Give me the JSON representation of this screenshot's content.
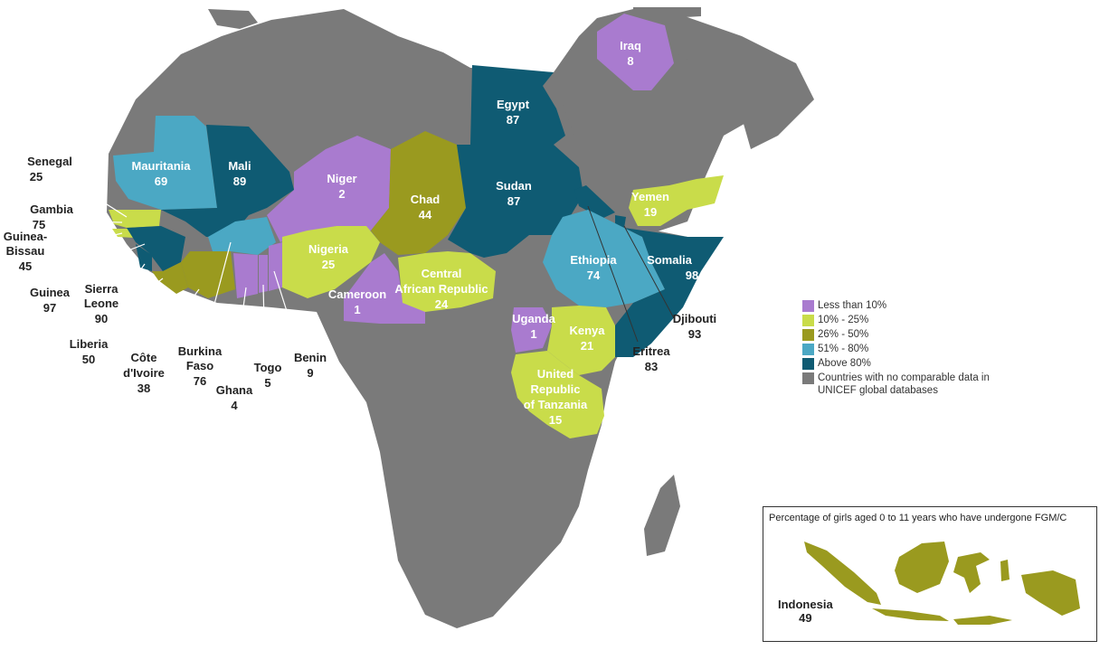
{
  "colors": {
    "less_than_10": "#a97bcf",
    "10_25": "#c9dc4a",
    "26_50": "#9a9a1f",
    "51_80": "#4ba8c4",
    "above_80": "#0f5b73",
    "no_data": "#7a7a7a"
  },
  "legend": [
    {
      "label": "Less than 10%",
      "color": "#a97bcf"
    },
    {
      "label": "10% - 25%",
      "color": "#c9dc4a"
    },
    {
      "label": "26% - 50%",
      "color": "#9a9a1f"
    },
    {
      "label": "51% - 80%",
      "color": "#4ba8c4"
    },
    {
      "label": "Above 80%",
      "color": "#0f5b73"
    },
    {
      "label": "Countries with no comparable data in UNICEF global databases",
      "color": "#7a7a7a"
    }
  ],
  "countries": {
    "iraq": {
      "name": "Iraq",
      "value": "8"
    },
    "egypt": {
      "name": "Egypt",
      "value": "87"
    },
    "mauritania": {
      "name": "Mauritania",
      "value": "69"
    },
    "mali": {
      "name": "Mali",
      "value": "89"
    },
    "niger": {
      "name": "Niger",
      "value": "2"
    },
    "chad": {
      "name": "Chad",
      "value": "44"
    },
    "sudan": {
      "name": "Sudan",
      "value": "87"
    },
    "yemen": {
      "name": "Yemen",
      "value": "19"
    },
    "nigeria": {
      "name": "Nigeria",
      "value": "25"
    },
    "ethiopia": {
      "name": "Ethiopia",
      "value": "74"
    },
    "somalia": {
      "name": "Somalia",
      "value": "98"
    },
    "cameroon": {
      "name": "Cameroon",
      "value": "1"
    },
    "car": {
      "name1": "Central",
      "name2": "African Republic",
      "value": "24"
    },
    "uganda": {
      "name": "Uganda",
      "value": "1"
    },
    "kenya": {
      "name": "Kenya",
      "value": "21"
    },
    "tanzania": {
      "name1": "United",
      "name2": "Republic",
      "name3": "of Tanzania",
      "value": "15"
    },
    "senegal": {
      "name": "Senegal",
      "value": "25"
    },
    "gambia": {
      "name": "Gambia",
      "value": "75"
    },
    "guinea_bissau": {
      "name1": "Guinea-",
      "name2": "Bissau",
      "value": "45"
    },
    "guinea": {
      "name": "Guinea",
      "value": "97"
    },
    "sierra_leone": {
      "name1": "Sierra",
      "name2": "Leone",
      "value": "90"
    },
    "liberia": {
      "name": "Liberia",
      "value": "50"
    },
    "cote_divoire": {
      "name1": "Côte",
      "name2": "d'Ivoire",
      "value": "38"
    },
    "burkina_faso": {
      "name1": "Burkina",
      "name2": "Faso",
      "value": "76"
    },
    "ghana": {
      "name": "Ghana",
      "value": "4"
    },
    "togo": {
      "name": "Togo",
      "value": "5"
    },
    "benin": {
      "name": "Benin",
      "value": "9"
    },
    "djibouti": {
      "name": "Djibouti",
      "value": "93"
    },
    "eritrea": {
      "name": "Eritrea",
      "value": "83"
    }
  },
  "inset": {
    "title": "Percentage of girls aged 0 to 11 years who have undergone FGM/C",
    "country": "Indonesia",
    "value": "49"
  }
}
